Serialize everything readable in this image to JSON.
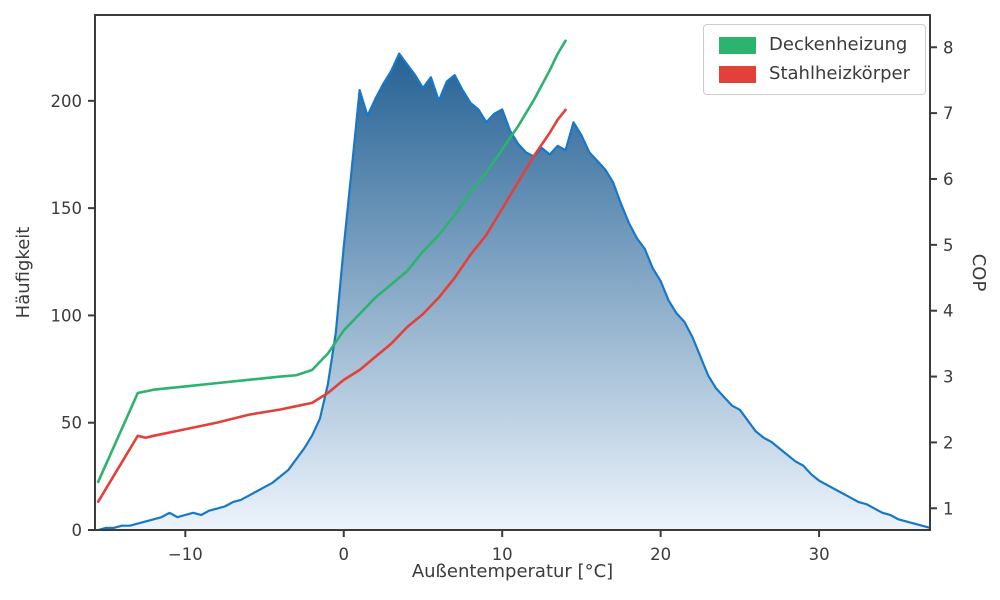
{
  "chart_data": {
    "type": "mixed-area-line",
    "title": "",
    "xlabel": "Außentemperatur [°C]",
    "ylabel_left": "Häufigkeit",
    "ylabel_right": "COP",
    "xlim": [
      -15.7,
      37.0
    ],
    "ylim_left": [
      0,
      240
    ],
    "ylim_right": [
      0.67,
      8.49
    ],
    "grid": false,
    "legend_position": "top-right",
    "axis_color": "#3b3b3b",
    "x_ticks": [
      {
        "v": -10,
        "label": "−10"
      },
      {
        "v": 0,
        "label": "0"
      },
      {
        "v": 10,
        "label": "10"
      },
      {
        "v": 20,
        "label": "20"
      },
      {
        "v": 30,
        "label": "30"
      }
    ],
    "y_ticks_left": [
      {
        "v": 0,
        "label": "0"
      },
      {
        "v": 50,
        "label": "50"
      },
      {
        "v": 100,
        "label": "100"
      },
      {
        "v": 150,
        "label": "150"
      },
      {
        "v": 200,
        "label": "200"
      }
    ],
    "y_ticks_right": [
      {
        "v": 1,
        "label": "1"
      },
      {
        "v": 2,
        "label": "2"
      },
      {
        "v": 3,
        "label": "3"
      },
      {
        "v": 4,
        "label": "4"
      },
      {
        "v": 5,
        "label": "5"
      },
      {
        "v": 6,
        "label": "6"
      },
      {
        "v": 7,
        "label": "7"
      },
      {
        "v": 8,
        "label": "8"
      }
    ],
    "area_series": {
      "axis": "left",
      "line_color": "#1878c8",
      "fill_top": "#15568c",
      "fill_bottom": "#edf4fc",
      "x": [
        -15.5,
        -15,
        -14.5,
        -14,
        -13.5,
        -13,
        -12.5,
        -12,
        -11.5,
        -11,
        -10.5,
        -10,
        -9.5,
        -9,
        -8.5,
        -8,
        -7.5,
        -7,
        -6.5,
        -6,
        -5.5,
        -5,
        -4.5,
        -4,
        -3.5,
        -3,
        -2.5,
        -2,
        -1.5,
        -1,
        -0.5,
        0,
        0.5,
        1,
        1.5,
        2,
        2.5,
        3,
        3.5,
        4,
        4.5,
        5,
        5.5,
        6,
        6.5,
        7,
        7.5,
        8,
        8.5,
        9,
        9.5,
        10,
        10.5,
        11,
        11.5,
        12,
        12.5,
        13,
        13.5,
        14,
        14.5,
        15,
        15.5,
        16,
        16.5,
        17,
        17.5,
        18,
        18.5,
        19,
        19.5,
        20,
        20.5,
        21,
        21.5,
        22,
        22.5,
        23,
        23.5,
        24,
        24.5,
        25,
        25.5,
        26,
        26.5,
        27,
        27.5,
        28,
        28.5,
        29,
        29.5,
        30,
        30.5,
        31,
        31.5,
        32,
        32.5,
        33,
        33.5,
        34,
        34.5,
        35,
        35.5,
        36,
        36.5,
        37
      ],
      "y": [
        0,
        1,
        1,
        2,
        2,
        3,
        4,
        5,
        6,
        8,
        6,
        7,
        8,
        7,
        9,
        10,
        11,
        13,
        14,
        16,
        18,
        20,
        22,
        25,
        28,
        33,
        38,
        44,
        52,
        68,
        92,
        132,
        168,
        205,
        193,
        201,
        208,
        214,
        222,
        217,
        212,
        206,
        211,
        200,
        209,
        212,
        205,
        199,
        196,
        190,
        194,
        196,
        186,
        180,
        176,
        174,
        178,
        175,
        179,
        177,
        190,
        184,
        176,
        172,
        168,
        162,
        152,
        143,
        136,
        131,
        122,
        116,
        107,
        101,
        97,
        90,
        81,
        72,
        66,
        62,
        58,
        56,
        51,
        46,
        43,
        41,
        38,
        35,
        32,
        30,
        26,
        23,
        21,
        19,
        17,
        15,
        13,
        12,
        10,
        8,
        7,
        5,
        4,
        3,
        2,
        1
      ]
    },
    "line_series": [
      {
        "name": "Deckenheizung",
        "axis": "right",
        "color": "#2cb36e",
        "x": [
          -15.5,
          -13,
          -12,
          -10,
          -8,
          -6,
          -4,
          -3,
          -2,
          -1,
          0,
          1,
          2,
          3,
          4,
          5,
          6,
          7,
          8,
          9,
          10,
          11,
          12,
          13,
          13.5,
          14
        ],
        "y": [
          1.4,
          2.75,
          2.8,
          2.85,
          2.9,
          2.95,
          3.0,
          3.02,
          3.1,
          3.35,
          3.7,
          3.95,
          4.2,
          4.4,
          4.6,
          4.9,
          5.15,
          5.45,
          5.8,
          6.1,
          6.45,
          6.8,
          7.2,
          7.65,
          7.9,
          8.1
        ]
      },
      {
        "name": "Stahlheizkörper",
        "axis": "right",
        "color": "#e4403a",
        "x": [
          -15.5,
          -13,
          -12.5,
          -12,
          -10,
          -8,
          -6,
          -4,
          -3,
          -2,
          -1,
          0,
          1,
          2,
          3,
          4,
          5,
          6,
          7,
          8,
          9,
          10,
          11,
          12,
          13,
          13.5,
          14
        ],
        "y": [
          1.1,
          2.1,
          2.07,
          2.1,
          2.2,
          2.3,
          2.42,
          2.5,
          2.55,
          2.6,
          2.75,
          2.95,
          3.1,
          3.3,
          3.5,
          3.75,
          3.95,
          4.2,
          4.5,
          4.85,
          5.15,
          5.55,
          5.95,
          6.35,
          6.7,
          6.9,
          7.05
        ]
      }
    ]
  }
}
